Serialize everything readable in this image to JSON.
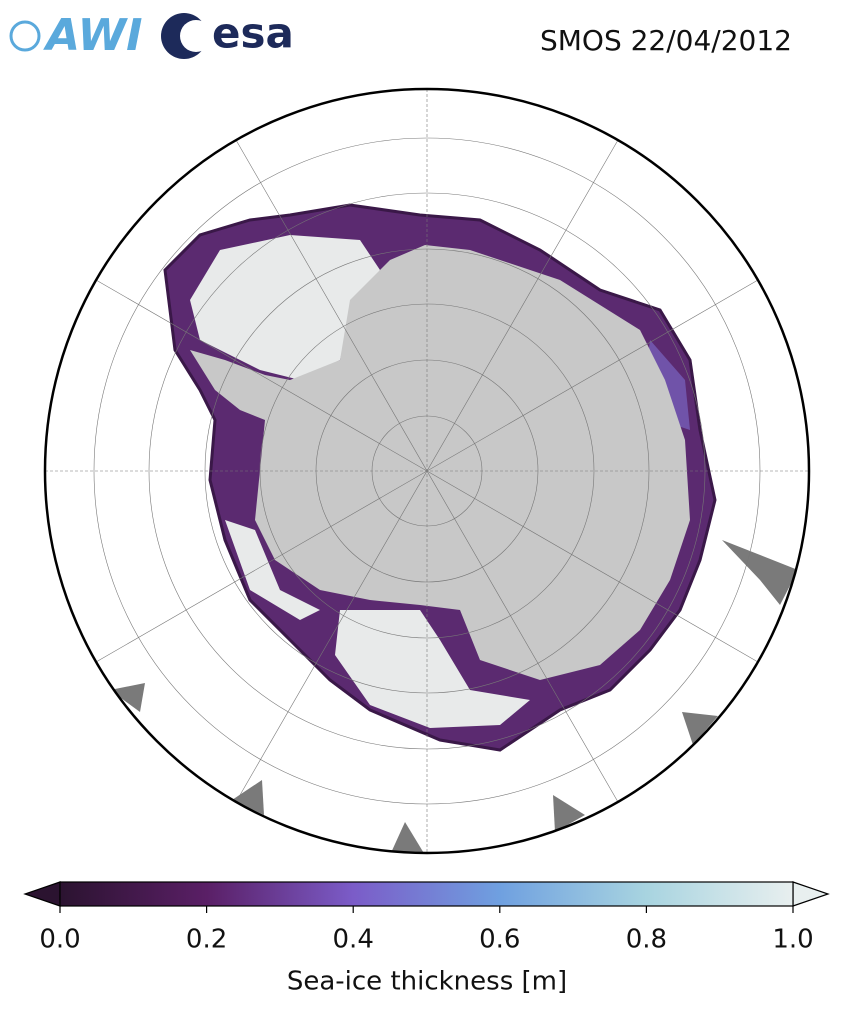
{
  "header": {
    "logos": [
      "AWI",
      "esa"
    ],
    "title": "SMOS 22/04/2012"
  },
  "colorbar": {
    "label": "Sea-ice thickness [m]",
    "range": [
      0,
      1
    ],
    "ticks": [
      {
        "value": 0,
        "label": "0.0"
      },
      {
        "value": 0.2,
        "label": "0.2"
      },
      {
        "value": 0.4,
        "label": "0.4"
      },
      {
        "value": 0.6,
        "label": "0.6"
      },
      {
        "value": 0.8,
        "label": "0.8"
      },
      {
        "value": 1,
        "label": "1.0"
      }
    ],
    "colors": [
      "#2b1330",
      "#5a1f66",
      "#7b5cc8",
      "#6fa0e0",
      "#a8d4e0",
      "#e8efef"
    ]
  }
}
